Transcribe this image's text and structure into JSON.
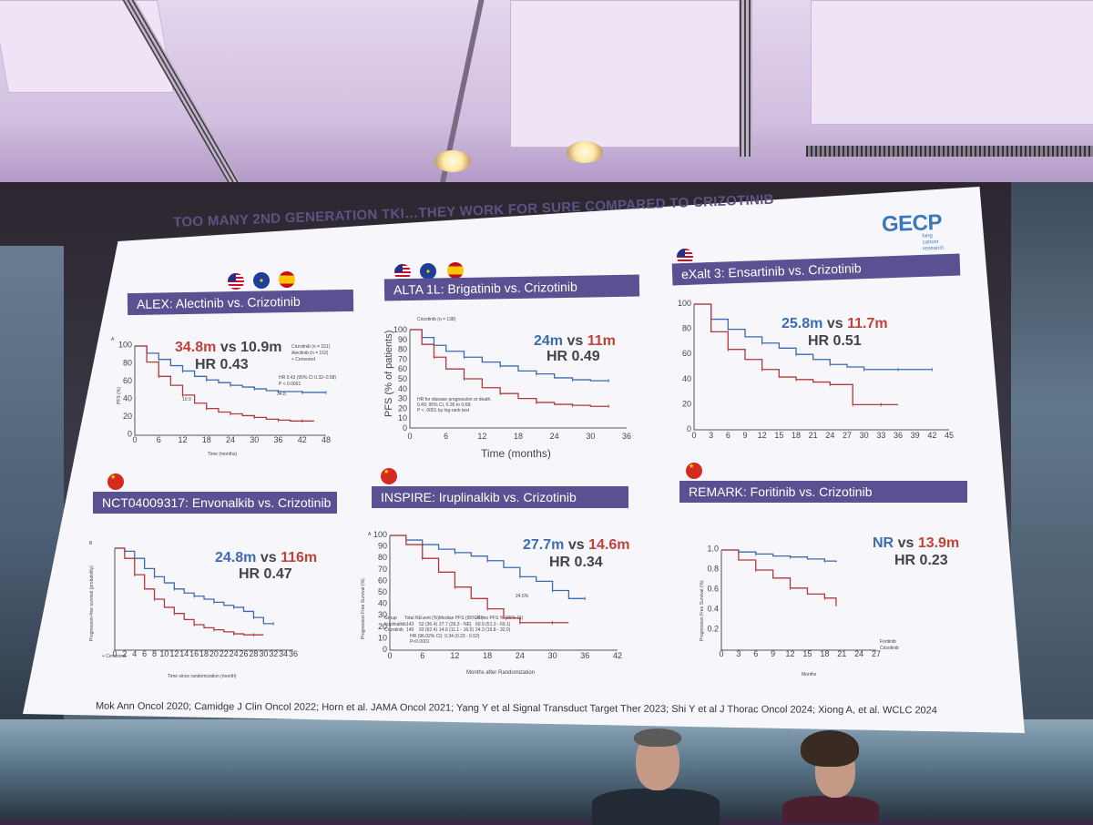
{
  "slide": {
    "title": "TOO MANY 2ND GENERATION TKI…THEY WORK FOR SURE COMPARED TO CRIZOTINIB",
    "logo": {
      "name": "GECP",
      "tagline": "lung cancer research"
    },
    "references": "Mok Ann Oncol 2020;  Camidge J Clin Oncol 2022; Horn et al. JAMA Oncol 2021; Yang Y et al Signal Transduct Target Ther 2023; Shi Y et al J Thorac Oncol 2024; Xiong A, et al. WCLC 2024"
  },
  "panels": [
    {
      "title": "ALEX: Alectinib vs. Crizotinib",
      "flags": [
        "us-flag",
        "eu-flag",
        "spain-flag"
      ],
      "median_left": "34.8m",
      "vs": "vs",
      "median_right": "10.9m",
      "hr": "HR 0.43",
      "panel_letter": "A",
      "legend": [
        "Crizotinib (n = 151)",
        "Alectinib (n = 152)",
        "+ Censored"
      ],
      "stats": [
        "HR 0.43 (95% CI 0.32–0.58)",
        "P < 0.0001"
      ],
      "marks": [
        "10.9",
        "34.8"
      ],
      "ylabel": "PFS (%)",
      "xlabel": "Time (months)",
      "yticks": [
        "100",
        "80",
        "60",
        "40",
        "20",
        "0"
      ],
      "xticks": [
        "0",
        "6",
        "12",
        "18",
        "24",
        "30",
        "36",
        "42",
        "48"
      ]
    },
    {
      "title": "ALTA 1L: Brigatinib vs. Crizotinib",
      "flags": [
        "us-flag",
        "eu-flag",
        "spain-flag"
      ],
      "median_left": "24m",
      "vs": "vs",
      "median_right": "11m",
      "hr": "HR 0.49",
      "header_row": "Crizotinib (n = 138)",
      "stats": [
        "HR for disease progression or death,",
        "0.49; 95% CI, 0.35 to 0.68;",
        "P < .0001 by log-rank test"
      ],
      "ylabel": "PFS (% of patients)",
      "xlabel": "Time (months)",
      "yticks": [
        "100",
        "90",
        "80",
        "70",
        "60",
        "50",
        "40",
        "30",
        "20",
        "10",
        "0"
      ],
      "xticks": [
        "0",
        "6",
        "12",
        "18",
        "24",
        "30",
        "36"
      ]
    },
    {
      "title": "eXalt 3: Ensartinib vs. Crizotinib",
      "flags": [
        "us-flag"
      ],
      "median_left": "25.8m",
      "vs": "vs",
      "median_right": "11.7m",
      "hr": "HR 0.51",
      "yticks": [
        "100",
        "80",
        "60",
        "40",
        "20",
        "0"
      ],
      "xticks": [
        "0",
        "3",
        "6",
        "9",
        "12",
        "15",
        "18",
        "21",
        "24",
        "27",
        "30",
        "33",
        "36",
        "39",
        "42",
        "45"
      ]
    },
    {
      "title": "NCT04009317: Envonalkib vs. Crizotinib",
      "flags": [
        "china-flag"
      ],
      "median_left": "24.8m",
      "vs": "vs",
      "median_right": "116m",
      "hr": "HR 0.47",
      "panel_letter": "B",
      "censored": "+ Censored",
      "ylabel": "Progression-free survival (probability)",
      "xlabel": "Time since randomization (month)",
      "xticks": [
        "0",
        "2",
        "4",
        "6",
        "8",
        "10",
        "12",
        "14",
        "16",
        "18",
        "20",
        "22",
        "24",
        "26",
        "28",
        "30",
        "32",
        "34",
        "36"
      ]
    },
    {
      "title": "INSPIRE: Iruplinalkib vs. Crizotinib",
      "flags": [
        "china-flag"
      ],
      "median_left": "27.7m",
      "vs": "vs",
      "median_right": "14.6m",
      "hr": "HR 0.34",
      "panel_letter": "A",
      "ylabel": "Progression Free Survival (%)",
      "xlabel": "Months after Randomization",
      "mark": "24.5%",
      "table_header": [
        "Group",
        "Total N",
        "Event (%)",
        "Median PFS (95% CI)",
        "24-mo PFS % (95% CI)"
      ],
      "table_rows": [
        [
          "Iruplinalkib",
          "143",
          "52 (36.4)",
          "27.7 (26.3 - NE)",
          "60.9 (51.3 - 69.1)"
        ],
        [
          "Crizotinib",
          "149",
          "93 (62.4)",
          "14.6 (11.1 - 16.5)",
          "24.3 (16.8 - 32.0)"
        ]
      ],
      "table_stats": [
        "HR (96.02% CI): 0.34 (0.23 - 0.52)",
        "P<0.0001"
      ],
      "yticks": [
        "100",
        "90",
        "80",
        "70",
        "60",
        "50",
        "40",
        "30",
        "20",
        "10",
        "0"
      ],
      "xticks": [
        "0",
        "6",
        "12",
        "18",
        "24",
        "30",
        "36",
        "42"
      ]
    },
    {
      "title": "REMARK: Foritinib vs. Crizotinib",
      "flags": [
        "china-flag"
      ],
      "median_left": "NR",
      "vs": "vs",
      "median_right": "13.9m",
      "hr": "HR 0.23",
      "ylabel": "Progression Free Survival (%)",
      "xlabel": "Months",
      "legend": [
        "Foritinib",
        "Crizotinib"
      ],
      "yticks": [
        "1.0",
        "0.8",
        "0.6",
        "0.4",
        "0.2"
      ],
      "xticks": [
        "0",
        "3",
        "6",
        "9",
        "12",
        "15",
        "18",
        "21",
        "24",
        "27"
      ]
    }
  ],
  "chart_data": [
    {
      "type": "line",
      "title": "ALEX: Alectinib vs. Crizotinib",
      "xlabel": "Time (months)",
      "ylabel": "PFS (%)",
      "xlim": [
        0,
        48
      ],
      "ylim": [
        0,
        100
      ],
      "series": [
        {
          "name": "Alectinib (n = 152)",
          "x": [
            0,
            3,
            6,
            9,
            12,
            15,
            18,
            21,
            24,
            27,
            30,
            33,
            36,
            39,
            42,
            45,
            48
          ],
          "y": [
            100,
            92,
            85,
            78,
            72,
            66,
            62,
            59,
            56,
            54,
            52,
            50,
            49,
            49,
            48,
            48,
            48
          ]
        },
        {
          "name": "Crizotinib (n = 151)",
          "x": [
            0,
            3,
            6,
            9,
            12,
            15,
            18,
            21,
            24,
            27,
            30,
            33,
            36,
            39,
            42,
            45
          ],
          "y": [
            100,
            82,
            66,
            56,
            45,
            36,
            30,
            26,
            24,
            22,
            20,
            18,
            17,
            16,
            16,
            16
          ]
        }
      ]
    },
    {
      "type": "line",
      "title": "ALTA 1L: Brigatinib vs. Crizotinib",
      "xlabel": "Time (months)",
      "ylabel": "PFS (% of patients)",
      "xlim": [
        0,
        36
      ],
      "ylim": [
        0,
        100
      ],
      "series": [
        {
          "name": "Brigatinib",
          "x": [
            0,
            2,
            4,
            6,
            9,
            12,
            15,
            18,
            21,
            24,
            27,
            30,
            33
          ],
          "y": [
            100,
            92,
            84,
            78,
            72,
            67,
            63,
            58,
            55,
            51,
            49,
            48,
            48
          ]
        },
        {
          "name": "Crizotinib (n = 138)",
          "x": [
            0,
            2,
            4,
            6,
            9,
            12,
            15,
            18,
            21,
            24,
            27,
            30,
            33
          ],
          "y": [
            100,
            85,
            72,
            60,
            50,
            41,
            35,
            30,
            26,
            24,
            23,
            22,
            22
          ]
        }
      ]
    },
    {
      "type": "line",
      "title": "eXalt 3: Ensartinib vs. Crizotinib",
      "xlim": [
        0,
        45
      ],
      "ylim": [
        0,
        100
      ],
      "series": [
        {
          "name": "Ensartinib",
          "x": [
            0,
            3,
            6,
            9,
            12,
            15,
            18,
            21,
            24,
            27,
            30,
            33,
            36,
            39,
            42
          ],
          "y": [
            100,
            88,
            80,
            74,
            69,
            65,
            60,
            56,
            52,
            50,
            48,
            48,
            48,
            48,
            48
          ]
        },
        {
          "name": "Crizotinib",
          "x": [
            0,
            3,
            6,
            9,
            12,
            15,
            18,
            21,
            24,
            27,
            28,
            30,
            33,
            36
          ],
          "y": [
            100,
            78,
            64,
            56,
            48,
            42,
            40,
            38,
            36,
            36,
            20,
            20,
            20,
            20
          ]
        }
      ]
    },
    {
      "type": "line",
      "title": "NCT04009317: Envonalkib vs. Crizotinib",
      "xlabel": "Time since randomization (month)",
      "ylabel": "Progression-free survival (probability)",
      "xlim": [
        0,
        36
      ],
      "ylim": [
        0,
        1
      ],
      "series": [
        {
          "name": "Envonalkib",
          "x": [
            0,
            2,
            4,
            6,
            8,
            10,
            12,
            14,
            16,
            18,
            20,
            22,
            24,
            26,
            28,
            30,
            32
          ],
          "y": [
            1.0,
            0.97,
            0.9,
            0.8,
            0.72,
            0.66,
            0.6,
            0.56,
            0.53,
            0.5,
            0.47,
            0.44,
            0.42,
            0.38,
            0.32,
            0.26,
            0.26
          ]
        },
        {
          "name": "Crizotinib",
          "x": [
            0,
            2,
            4,
            6,
            8,
            10,
            12,
            14,
            16,
            18,
            20,
            22,
            24,
            26,
            28,
            30
          ],
          "y": [
            1.0,
            0.9,
            0.74,
            0.6,
            0.5,
            0.42,
            0.36,
            0.3,
            0.25,
            0.22,
            0.2,
            0.18,
            0.16,
            0.15,
            0.15,
            0.15
          ]
        }
      ]
    },
    {
      "type": "line",
      "title": "INSPIRE: Iruplinalkib vs. Crizotinib",
      "xlabel": "Months after Randomization",
      "ylabel": "Progression Free Survival (%)",
      "xlim": [
        0,
        42
      ],
      "ylim": [
        0,
        100
      ],
      "series": [
        {
          "name": "Iruplinalkib",
          "x": [
            0,
            3,
            6,
            9,
            12,
            15,
            18,
            21,
            24,
            27,
            30,
            33,
            36
          ],
          "y": [
            100,
            96,
            92,
            88,
            85,
            82,
            78,
            72,
            64,
            60,
            52,
            45,
            45
          ]
        },
        {
          "name": "Crizotinib",
          "x": [
            0,
            3,
            6,
            9,
            12,
            15,
            18,
            21,
            24,
            27,
            30,
            33
          ],
          "y": [
            100,
            92,
            80,
            68,
            55,
            45,
            36,
            28,
            24,
            24,
            24,
            24
          ]
        }
      ]
    },
    {
      "type": "line",
      "title": "REMARK: Foritinib vs. Crizotinib",
      "xlabel": "Months",
      "ylabel": "Progression Free Survival (%)",
      "xlim": [
        0,
        27
      ],
      "ylim": [
        0,
        1
      ],
      "series": [
        {
          "name": "Foritinib",
          "x": [
            0,
            3,
            6,
            9,
            12,
            15,
            18,
            20
          ],
          "y": [
            1.0,
            0.98,
            0.96,
            0.94,
            0.93,
            0.91,
            0.89,
            0.88
          ]
        },
        {
          "name": "Crizotinib",
          "x": [
            0,
            3,
            6,
            9,
            12,
            15,
            18,
            20
          ],
          "y": [
            1.0,
            0.9,
            0.8,
            0.72,
            0.62,
            0.56,
            0.52,
            0.44
          ]
        }
      ]
    }
  ],
  "colors": {
    "experimental": "#3b6bb0",
    "crizotinib": "#b23a3a",
    "banner": "#595191",
    "title": "#5d5382",
    "logo": "#3b78b8"
  }
}
